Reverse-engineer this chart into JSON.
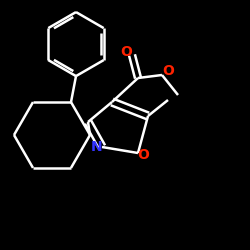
{
  "bg_color": "#000000",
  "bond_color": "#ffffff",
  "N_color": "#3333ff",
  "O_color": "#ff2200",
  "line_width": 1.8,
  "figsize": [
    2.5,
    2.5
  ],
  "dpi": 100,
  "xlim": [
    0,
    250
  ],
  "ylim": [
    0,
    250
  ]
}
